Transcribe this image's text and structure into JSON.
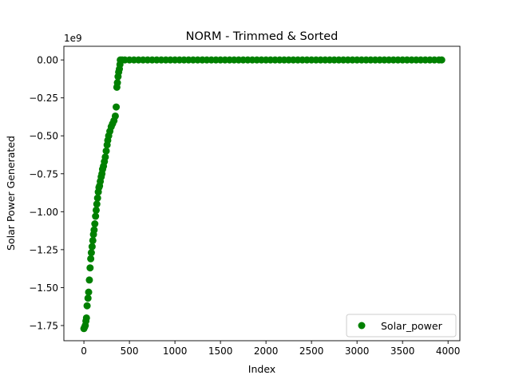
{
  "chart_data": {
    "type": "scatter",
    "title": "NORM - Trimmed & Sorted",
    "xlabel": "Index",
    "ylabel": "Solar Power Generated",
    "offset_text": "1e9",
    "xlim": [
      -220,
      4130
    ],
    "ylim": [
      -1.85,
      0.09
    ],
    "y_scale_factor": 1000000000,
    "x_ticks": [
      0,
      500,
      1000,
      1500,
      2000,
      2500,
      3000,
      3500,
      4000
    ],
    "x_tick_labels": [
      "0",
      "500",
      "1000",
      "1500",
      "2000",
      "2500",
      "3000",
      "3500",
      "4000"
    ],
    "y_ticks": [
      -1.75,
      -1.5,
      -1.25,
      -1.0,
      -0.75,
      -0.5,
      -0.25,
      0.0
    ],
    "y_tick_labels": [
      "−1.75",
      "−1.50",
      "−1.25",
      "−1.00",
      "−0.75",
      "−0.50",
      "−0.25",
      "0.00"
    ],
    "grid": false,
    "legend": {
      "position": "bottom-right",
      "entries": [
        "Solar_power"
      ]
    },
    "color": "#008000",
    "series": [
      {
        "name": "Solar_power",
        "points": [
          [
            0,
            -1.77
          ],
          [
            8,
            -1.76
          ],
          [
            15,
            -1.75
          ],
          [
            22,
            -1.72
          ],
          [
            28,
            -1.7
          ],
          [
            35,
            -1.62
          ],
          [
            45,
            -1.57
          ],
          [
            52,
            -1.53
          ],
          [
            60,
            -1.45
          ],
          [
            68,
            -1.37
          ],
          [
            75,
            -1.31
          ],
          [
            82,
            -1.27
          ],
          [
            90,
            -1.23
          ],
          [
            98,
            -1.19
          ],
          [
            105,
            -1.15
          ],
          [
            112,
            -1.12
          ],
          [
            120,
            -1.08
          ],
          [
            128,
            -1.03
          ],
          [
            135,
            -0.99
          ],
          [
            142,
            -0.95
          ],
          [
            150,
            -0.91
          ],
          [
            158,
            -0.87
          ],
          [
            165,
            -0.84
          ],
          [
            172,
            -0.83
          ],
          [
            180,
            -0.8
          ],
          [
            190,
            -0.77
          ],
          [
            198,
            -0.75
          ],
          [
            205,
            -0.72
          ],
          [
            215,
            -0.7
          ],
          [
            225,
            -0.67
          ],
          [
            235,
            -0.64
          ],
          [
            245,
            -0.6
          ],
          [
            255,
            -0.56
          ],
          [
            262,
            -0.53
          ],
          [
            272,
            -0.5
          ],
          [
            285,
            -0.47
          ],
          [
            300,
            -0.44
          ],
          [
            315,
            -0.42
          ],
          [
            330,
            -0.4
          ],
          [
            345,
            -0.37
          ],
          [
            355,
            -0.31
          ],
          [
            362,
            -0.18
          ],
          [
            368,
            -0.15
          ],
          [
            375,
            -0.11
          ],
          [
            382,
            -0.08
          ],
          [
            390,
            -0.06
          ],
          [
            396,
            -0.03
          ],
          [
            400,
            0
          ],
          [
            420,
            0
          ],
          [
            450,
            0
          ],
          [
            500,
            0
          ],
          [
            550,
            0
          ],
          [
            600,
            0
          ],
          [
            650,
            0
          ],
          [
            700,
            0
          ],
          [
            750,
            0
          ],
          [
            800,
            0
          ],
          [
            850,
            0
          ],
          [
            900,
            0
          ],
          [
            950,
            0
          ],
          [
            1000,
            0
          ],
          [
            1050,
            0
          ],
          [
            1100,
            0
          ],
          [
            1150,
            0
          ],
          [
            1200,
            0
          ],
          [
            1250,
            0
          ],
          [
            1300,
            0
          ],
          [
            1350,
            0
          ],
          [
            1400,
            0
          ],
          [
            1450,
            0
          ],
          [
            1500,
            0
          ],
          [
            1550,
            0
          ],
          [
            1600,
            0
          ],
          [
            1650,
            0
          ],
          [
            1700,
            0
          ],
          [
            1750,
            0
          ],
          [
            1800,
            0
          ],
          [
            1850,
            0
          ],
          [
            1900,
            0
          ],
          [
            1950,
            0
          ],
          [
            2000,
            0
          ],
          [
            2050,
            0
          ],
          [
            2100,
            0
          ],
          [
            2150,
            0
          ],
          [
            2200,
            0
          ],
          [
            2250,
            0
          ],
          [
            2300,
            0
          ],
          [
            2350,
            0
          ],
          [
            2400,
            0
          ],
          [
            2450,
            0
          ],
          [
            2500,
            0
          ],
          [
            2550,
            0
          ],
          [
            2600,
            0
          ],
          [
            2650,
            0
          ],
          [
            2700,
            0
          ],
          [
            2750,
            0
          ],
          [
            2800,
            0
          ],
          [
            2850,
            0
          ],
          [
            2900,
            0
          ],
          [
            2950,
            0
          ],
          [
            3000,
            0
          ],
          [
            3050,
            0
          ],
          [
            3100,
            0
          ],
          [
            3150,
            0
          ],
          [
            3200,
            0
          ],
          [
            3250,
            0
          ],
          [
            3300,
            0
          ],
          [
            3350,
            0
          ],
          [
            3400,
            0
          ],
          [
            3450,
            0
          ],
          [
            3500,
            0
          ],
          [
            3550,
            0
          ],
          [
            3600,
            0
          ],
          [
            3650,
            0
          ],
          [
            3700,
            0
          ],
          [
            3750,
            0
          ],
          [
            3800,
            0
          ],
          [
            3850,
            0
          ],
          [
            3900,
            0
          ],
          [
            3930,
            0
          ]
        ]
      }
    ]
  }
}
